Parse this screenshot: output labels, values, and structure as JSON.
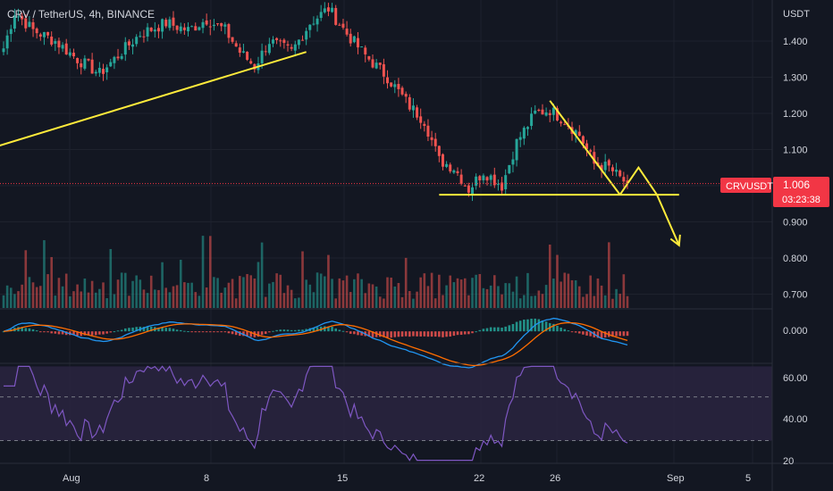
{
  "header": {
    "symbol": "CRV",
    "quote": "TetherUS",
    "interval": "4h",
    "exchange": "BINANCE",
    "title_sep": ", "
  },
  "price_axis": {
    "unit_label": "USDT",
    "ticks": [
      "1.400",
      "1.300",
      "1.200",
      "1.100",
      "1.000",
      "0.900",
      "0.800",
      "0.700"
    ],
    "tick_values": [
      1.4,
      1.3,
      1.2,
      1.1,
      1.0,
      0.9,
      0.8,
      0.7
    ]
  },
  "current_price": {
    "ticker": "CRVUSDT",
    "value": "1.006",
    "countdown": "03:23:38",
    "price": 1.006,
    "badge_color": "#f23645"
  },
  "macd_axis": {
    "ticks": [
      "0.000"
    ]
  },
  "rsi_axis": {
    "ticks": [
      "60.00",
      "40.00",
      "20"
    ],
    "tick_values": [
      60,
      40,
      20
    ]
  },
  "time_axis": {
    "labels": [
      "Aug",
      "8",
      "15",
      "22",
      "26",
      "Sep",
      "5"
    ]
  },
  "colors": {
    "background": "#131722",
    "up": "#26a69a",
    "down": "#ef5350",
    "drawing": "#ffeb3b",
    "macd_line": "#2196f3",
    "signal_line": "#ff6d00",
    "rsi_line": "#7e57c2",
    "rsi_band": "#2a2540",
    "price_line": "#f23645"
  },
  "chart_data": {
    "type": "candlestick",
    "title": "CRV / TetherUS, 4h, BINANCE",
    "ylabel": "USDT",
    "y_range": [
      0.655,
      1.495
    ],
    "x_labels": [
      "Aug",
      "8",
      "15",
      "22",
      "26",
      "Sep",
      "5"
    ],
    "candle_count": 170,
    "close_path": [
      {
        "i": 0,
        "close": 1.38
      },
      {
        "i": 3,
        "close": 1.48
      },
      {
        "i": 8,
        "close": 1.43
      },
      {
        "i": 14,
        "close": 1.4
      },
      {
        "i": 20,
        "close": 1.35
      },
      {
        "i": 26,
        "close": 1.31
      },
      {
        "i": 31,
        "close": 1.36
      },
      {
        "i": 37,
        "close": 1.42
      },
      {
        "i": 44,
        "close": 1.45
      },
      {
        "i": 50,
        "close": 1.43
      },
      {
        "i": 55,
        "close": 1.46
      },
      {
        "i": 60,
        "close": 1.43
      },
      {
        "i": 64,
        "close": 1.37
      },
      {
        "i": 68,
        "close": 1.33
      },
      {
        "i": 72,
        "close": 1.4
      },
      {
        "i": 78,
        "close": 1.37
      },
      {
        "i": 83,
        "close": 1.45
      },
      {
        "i": 88,
        "close": 1.49
      },
      {
        "i": 93,
        "close": 1.42
      },
      {
        "i": 98,
        "close": 1.36
      },
      {
        "i": 104,
        "close": 1.3
      },
      {
        "i": 110,
        "close": 1.22
      },
      {
        "i": 114,
        "close": 1.18
      },
      {
        "i": 118,
        "close": 1.07
      },
      {
        "i": 122,
        "close": 1.05
      },
      {
        "i": 126,
        "close": 0.99
      },
      {
        "i": 130,
        "close": 1.04
      },
      {
        "i": 135,
        "close": 1.0
      },
      {
        "i": 139,
        "close": 1.12
      },
      {
        "i": 144,
        "close": 1.2
      },
      {
        "i": 148,
        "close": 1.21
      },
      {
        "i": 152,
        "close": 1.18
      },
      {
        "i": 156,
        "close": 1.14
      },
      {
        "i": 160,
        "close": 1.06
      },
      {
        "i": 164,
        "close": 1.05
      },
      {
        "i": 167,
        "close": 1.02
      },
      {
        "i": 169,
        "close": 1.006
      }
    ],
    "volume_scale": [
      0,
      1
    ],
    "macd_scale": [
      -0.07,
      0.05
    ],
    "rsi_scale": [
      20,
      65
    ],
    "rsi_levels": [
      30,
      50
    ]
  },
  "drawings": {
    "support_level": 0.975,
    "trendline": {
      "from": {
        "i": -3,
        "price": 1.105
      },
      "to": {
        "i": 82,
        "price": 1.37
      }
    },
    "descending_line": {
      "from": {
        "i": 148,
        "price": 1.235
      },
      "to": {
        "i": 167,
        "price": 0.975
      }
    },
    "projection": [
      {
        "i": 167,
        "price": 0.975
      },
      {
        "i": 172,
        "price": 1.05
      },
      {
        "i": 177,
        "price": 0.975
      },
      {
        "i": 183,
        "price": 0.835
      }
    ]
  }
}
